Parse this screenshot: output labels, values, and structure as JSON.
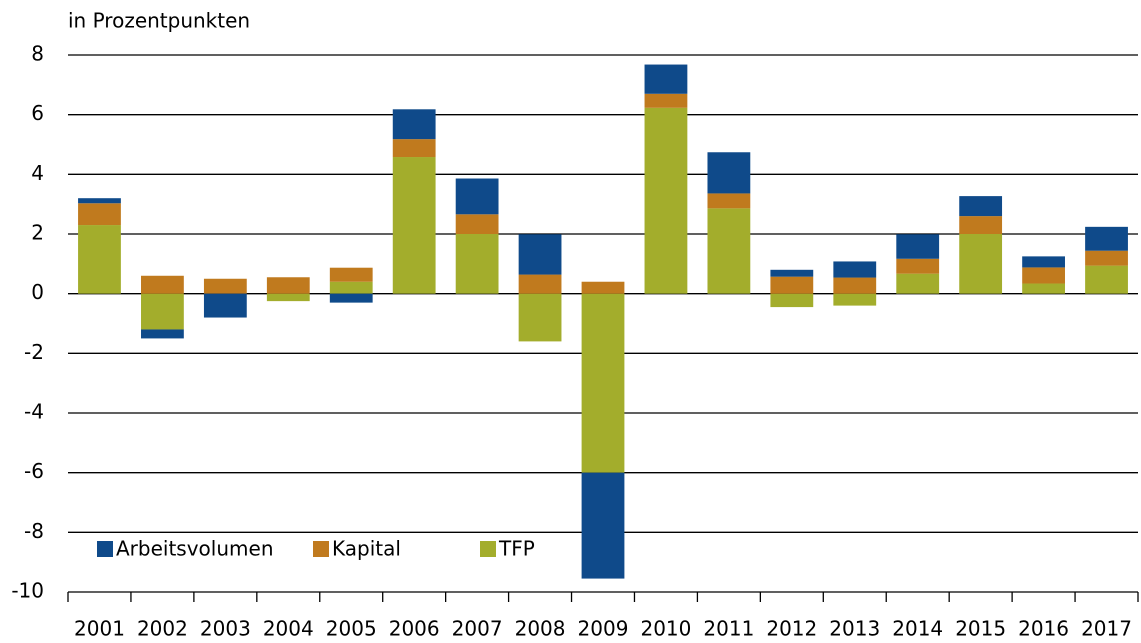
{
  "chart_data": {
    "type": "stacked-bar",
    "y_label": "in Prozentpunkten",
    "categories": [
      "2001",
      "2002",
      "2003",
      "2004",
      "2005",
      "2006",
      "2007",
      "2008",
      "2009",
      "2010",
      "2011",
      "2012",
      "2013",
      "2014",
      "2015",
      "2016",
      "2017"
    ],
    "series": [
      {
        "name": "Arbeitsvolumen",
        "color": "#0f4a8a",
        "values": [
          0.17,
          -0.3,
          -0.8,
          0,
          -0.3,
          1.0,
          1.2,
          1.35,
          -3.55,
          0.98,
          1.38,
          0.23,
          0.54,
          0.82,
          0.67,
          0.37,
          0.8
        ]
      },
      {
        "name": "Kapital",
        "color": "#c07a1e",
        "values": [
          0.73,
          0.6,
          0.5,
          0.55,
          0.47,
          0.6,
          0.66,
          0.64,
          0.4,
          0.47,
          0.5,
          0.57,
          0.54,
          0.5,
          0.6,
          0.54,
          0.5
        ]
      },
      {
        "name": "TFP",
        "color": "#a3ad2c",
        "values": [
          2.3,
          -1.2,
          0,
          -0.25,
          0.4,
          4.58,
          2.0,
          -1.6,
          -6.0,
          6.23,
          2.86,
          -0.45,
          -0.4,
          0.67,
          2.0,
          0.34,
          0.94
        ]
      }
    ],
    "ylim": [
      -10,
      8
    ],
    "yticks": [
      -10,
      -8,
      -6,
      -4,
      -2,
      0,
      2,
      4,
      6,
      8
    ],
    "grid": true,
    "legend": "lower left"
  }
}
